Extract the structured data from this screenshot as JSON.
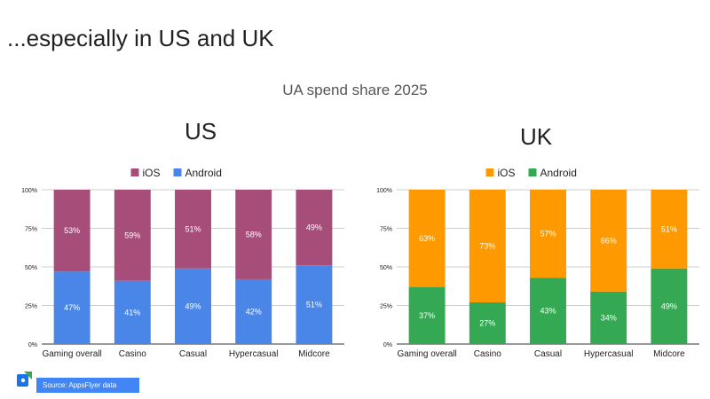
{
  "slide": {
    "title": "...especially in US and UK",
    "subtitle": "UA spend share 2025"
  },
  "source": {
    "label": "Source: AppsFlyer data",
    "icon": "appsflyer-logo-icon"
  },
  "colors": {
    "us_ios": "#a64d79",
    "us_android": "#4a86e8",
    "uk_ios": "#ff9900",
    "uk_android": "#34a853"
  },
  "chart_data": [
    {
      "type": "bar",
      "stacked": true,
      "percent_stacked": true,
      "title": "US",
      "categories": [
        "Gaming overall",
        "Casino",
        "Casual",
        "Hypercasual",
        "Midcore"
      ],
      "series": [
        {
          "name": "iOS",
          "values": [
            53,
            59,
            51,
            58,
            49
          ],
          "color": "#a64d79"
        },
        {
          "name": "Android",
          "values": [
            47,
            41,
            49,
            42,
            51
          ],
          "color": "#4a86e8"
        }
      ],
      "yticks": [
        "0%",
        "25%",
        "50%",
        "75%",
        "100%"
      ],
      "ylim": [
        0,
        100
      ],
      "legend": "top-center",
      "grid": true
    },
    {
      "type": "bar",
      "stacked": true,
      "percent_stacked": true,
      "title": "UK",
      "categories": [
        "Gaming overall",
        "Casino",
        "Casual",
        "Hypercasual",
        "Midcore"
      ],
      "series": [
        {
          "name": "iOS",
          "values": [
            63,
            73,
            57,
            66,
            51
          ],
          "color": "#ff9900"
        },
        {
          "name": "Android",
          "values": [
            37,
            27,
            43,
            34,
            49
          ],
          "color": "#34a853"
        }
      ],
      "yticks": [
        "0%",
        "25%",
        "50%",
        "75%",
        "100%"
      ],
      "ylim": [
        0,
        100
      ],
      "legend": "top-center",
      "grid": true
    }
  ]
}
